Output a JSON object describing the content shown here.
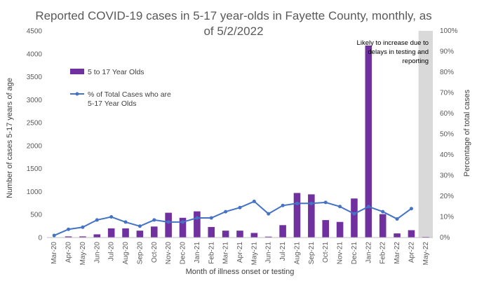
{
  "chart_data": {
    "type": "bar",
    "title_line1": "Reported COVID-19 cases in 5-17 year-olds in Fayette County, monthly, as",
    "title_line2": "of 5/2/2022",
    "xlabel": "Month of illness onset or testing",
    "ylabel": "Number of cases 5-17 years of age",
    "y2label": "Percentage of total cases",
    "ylim": [
      0,
      4500
    ],
    "y2lim": [
      0,
      1.0
    ],
    "yticks": [
      "0",
      "500",
      "1000",
      "1500",
      "2000",
      "2500",
      "3000",
      "3500",
      "4000",
      "4500"
    ],
    "y2ticks": [
      "0%",
      "10%",
      "20%",
      "30%",
      "40%",
      "50%",
      "60%",
      "70%",
      "80%",
      "90%",
      "100%"
    ],
    "categories": [
      "Mar-20",
      "Apr-20",
      "May-20",
      "Jun-20",
      "Jul-20",
      "Aug-20",
      "Sep-20",
      "Oct-20",
      "Nov-20",
      "Dec-20",
      "Jan-21",
      "Feb-21",
      "Mar-21",
      "Apr-21",
      "May-21",
      "Jun-21",
      "Jul-21",
      "Aug-21",
      "Sep-21",
      "Oct-21",
      "Nov-21",
      "Dec-21",
      "Jan-22",
      "Feb-22",
      "Mar-22",
      "Apr-22",
      "May-22"
    ],
    "series": [
      {
        "name": "5 to 17 Year Olds",
        "kind": "bar",
        "color": "#7030A0",
        "values": [
          2,
          25,
          25,
          70,
          200,
          200,
          150,
          240,
          540,
          430,
          570,
          230,
          150,
          150,
          100,
          20,
          270,
          970,
          940,
          380,
          340,
          850,
          4180,
          510,
          90,
          160,
          15
        ]
      },
      {
        "name": "% of Total Cases who are 5-17 Year Olds",
        "kind": "line",
        "axis": "secondary",
        "color": "#4472C4",
        "values": [
          0.01,
          0.04,
          0.05,
          0.085,
          0.1,
          0.075,
          0.055,
          0.085,
          0.075,
          0.075,
          0.095,
          0.095,
          0.125,
          0.145,
          0.175,
          0.115,
          0.155,
          0.165,
          0.165,
          0.17,
          0.15,
          0.115,
          0.15,
          0.125,
          0.09,
          0.14,
          null
        ]
      }
    ],
    "shaded_region": {
      "from": "May-22",
      "to": "May-22",
      "color": "#D9D9D9"
    },
    "annotation_lines": [
      "Likely to increase due to",
      "delays in testing and",
      "reporting"
    ],
    "legend_position": "upper-left",
    "grid": false
  }
}
